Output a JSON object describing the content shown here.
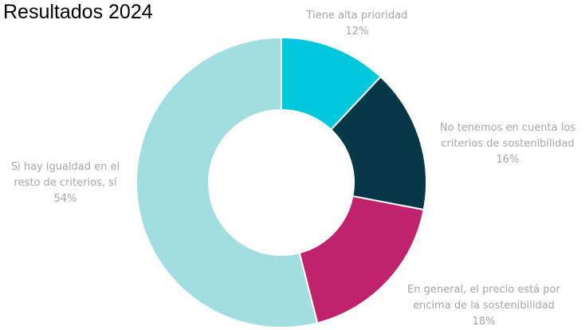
{
  "title": "Resultados 2024",
  "colors": {
    "background": "#ffffff",
    "label_text": "#a6a6a6",
    "title_text": "#000000"
  },
  "chart_data": {
    "type": "pie",
    "title": "Resultados 2024",
    "donut": true,
    "start": "top",
    "direction": "clockwise",
    "slices": [
      {
        "label_lines": [
          "Tiene alta prioridad"
        ],
        "value": 12,
        "value_label": "12%",
        "color": "#00c8dc"
      },
      {
        "label_lines": [
          "No tenemos en cuenta los",
          "criterios de sostenibilidad"
        ],
        "value": 16,
        "value_label": "16%",
        "color": "#063847"
      },
      {
        "label_lines": [
          "En general, el precio está por",
          "encima de la sostenibilidad"
        ],
        "value": 18,
        "value_label": "18%",
        "color": "#c0226b"
      },
      {
        "label_lines": [
          "Si hay igualdad en el",
          "resto de criterios, sí"
        ],
        "value": 54,
        "value_label": "54%",
        "color": "#a2dde0"
      }
    ]
  }
}
